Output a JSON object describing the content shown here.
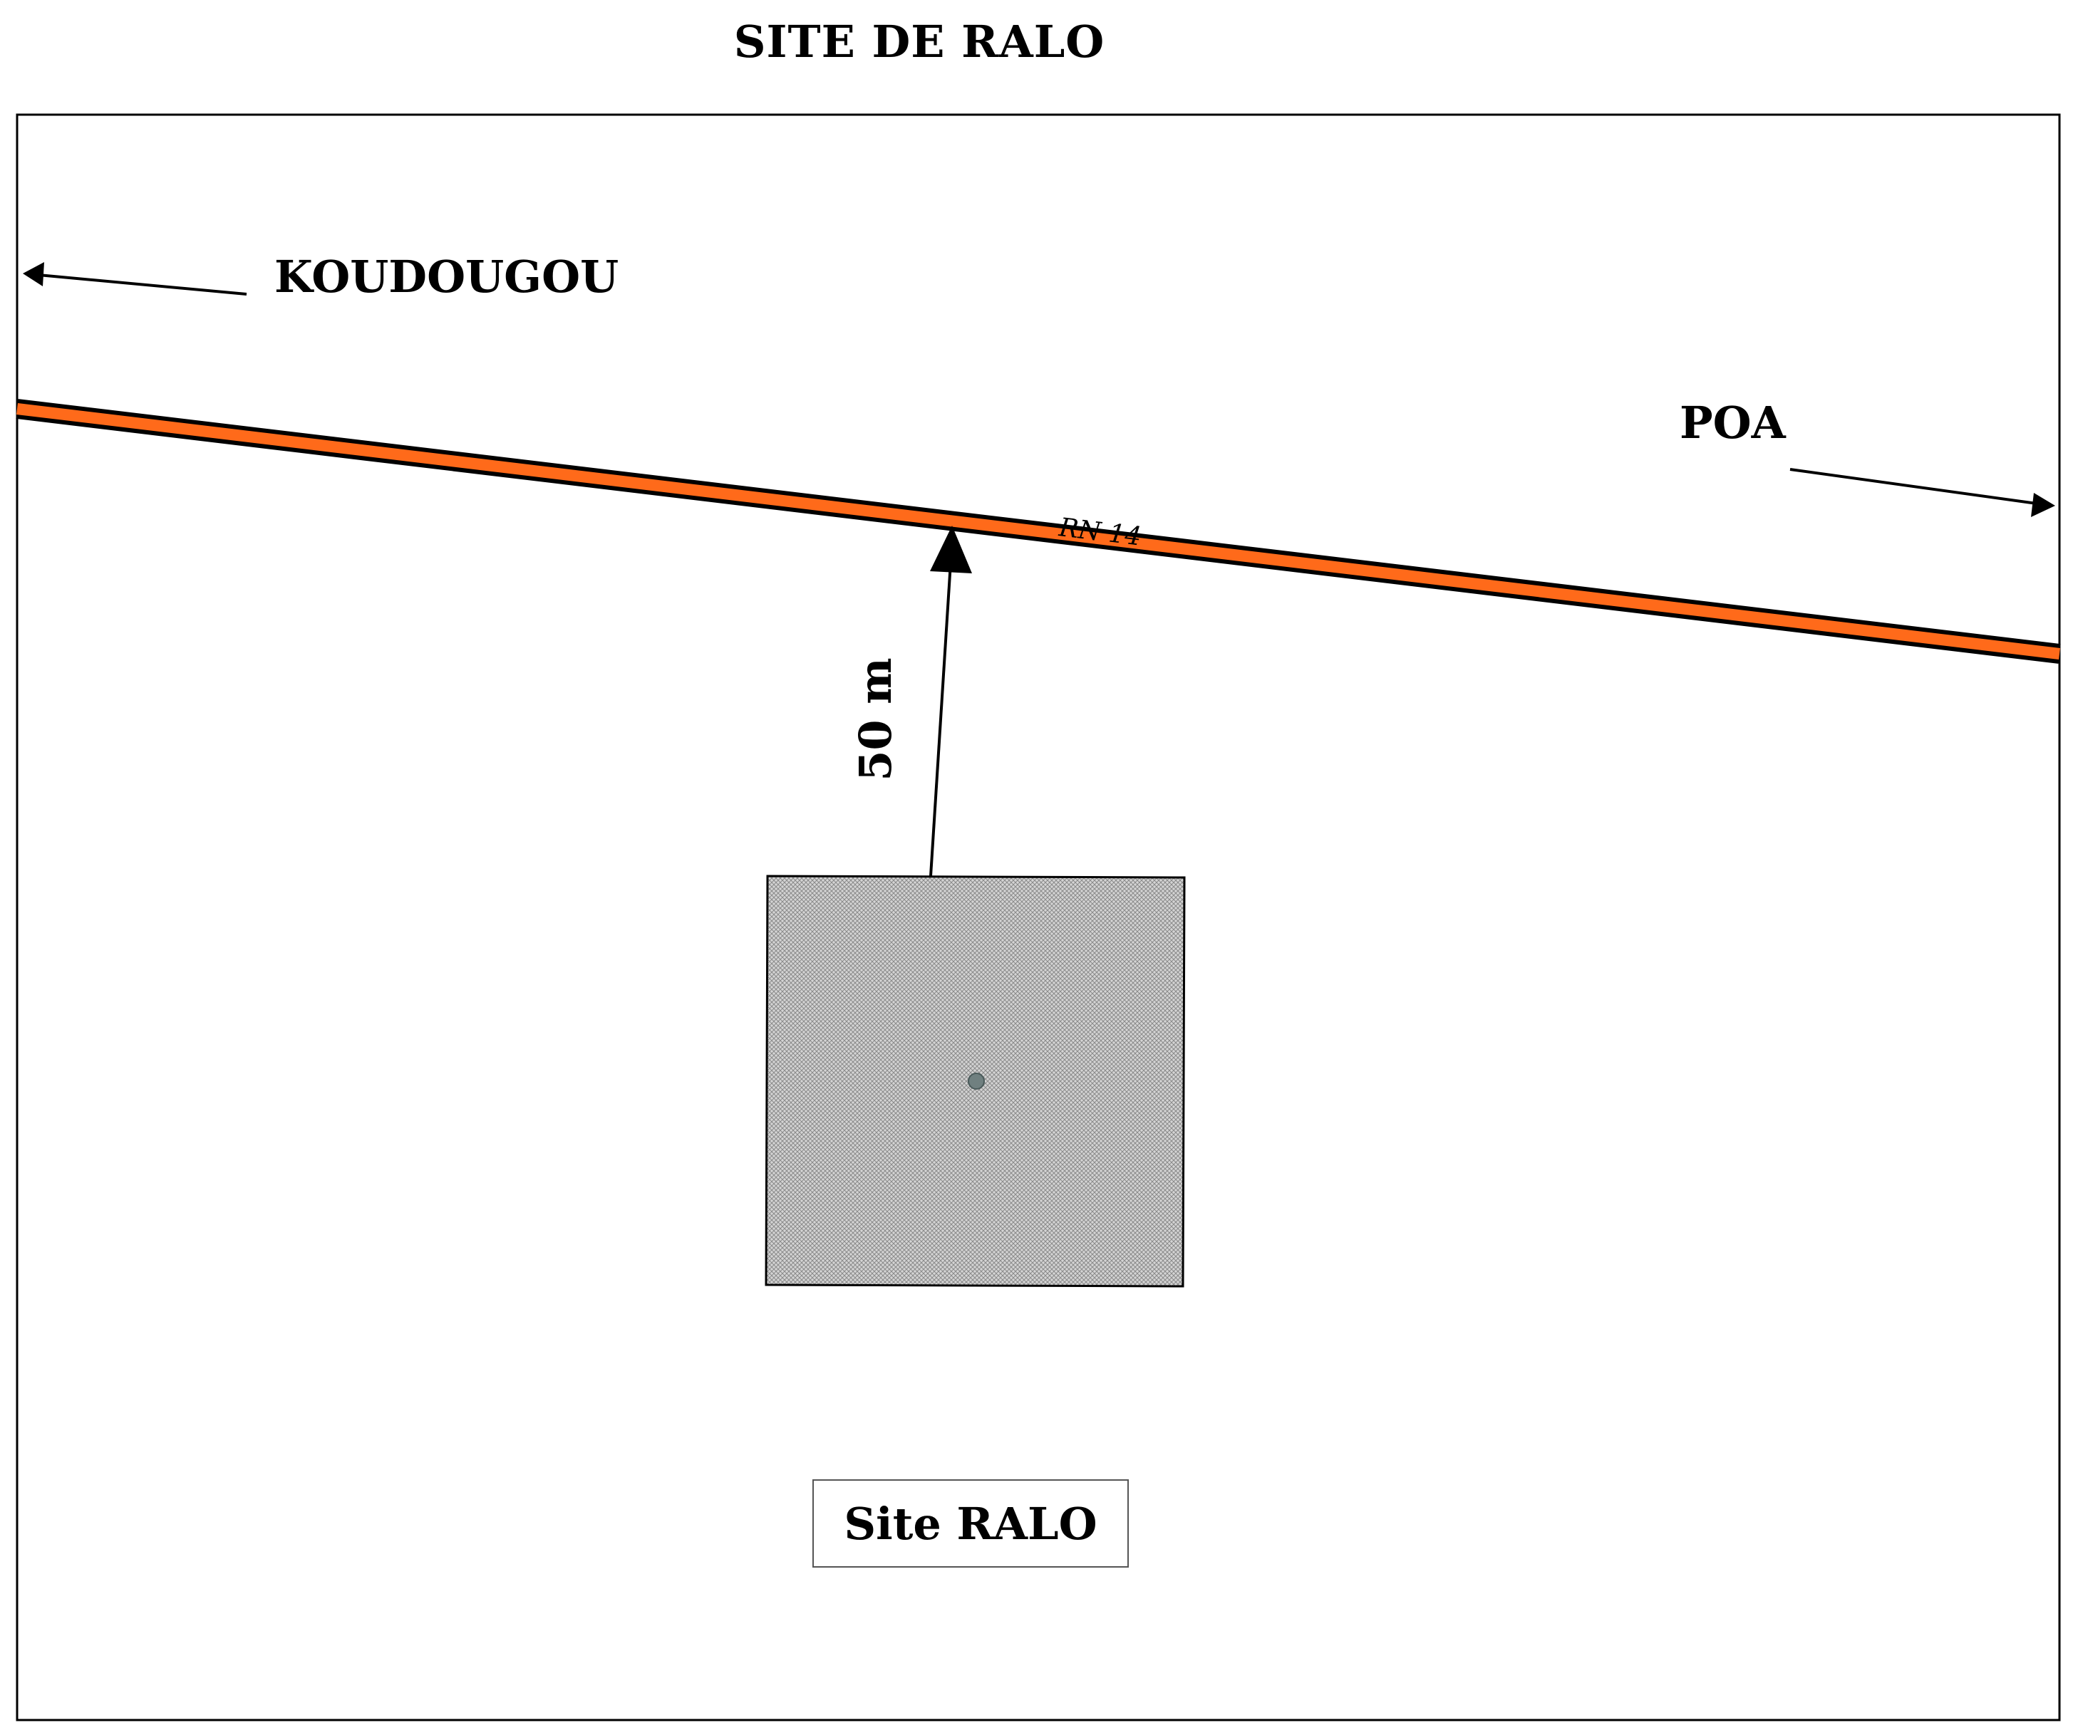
{
  "title": "SITE DE RALO",
  "directions": {
    "west": "KOUDOUGOU",
    "east": "POA"
  },
  "road": {
    "label": "RN 14",
    "color": "#ff6a1a"
  },
  "distance": {
    "label": "50 m"
  },
  "site": {
    "label": "Site RALO",
    "fill_color": "#c8c8c8",
    "marker_color": "#708080"
  }
}
